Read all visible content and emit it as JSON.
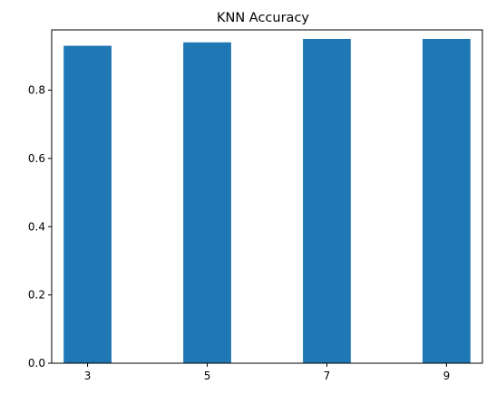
{
  "chart_data": {
    "type": "bar",
    "title": "KNN Accuracy",
    "xlabel": "",
    "ylabel": "",
    "categories": [
      "3",
      "5",
      "7",
      "9"
    ],
    "x": [
      3,
      5,
      7,
      9
    ],
    "values": [
      0.93,
      0.94,
      0.95,
      0.95
    ],
    "ylim": [
      0,
      0.9765
    ],
    "xlim": [
      2.4,
      9.6
    ],
    "yticks": [
      0.0,
      0.2,
      0.4,
      0.6,
      0.8
    ],
    "ytick_labels": [
      "0.0",
      "0.2",
      "0.4",
      "0.6",
      "0.8"
    ],
    "bar_width": 0.8,
    "grid": false,
    "legend": "none",
    "bar_color": "#1f77b4"
  }
}
